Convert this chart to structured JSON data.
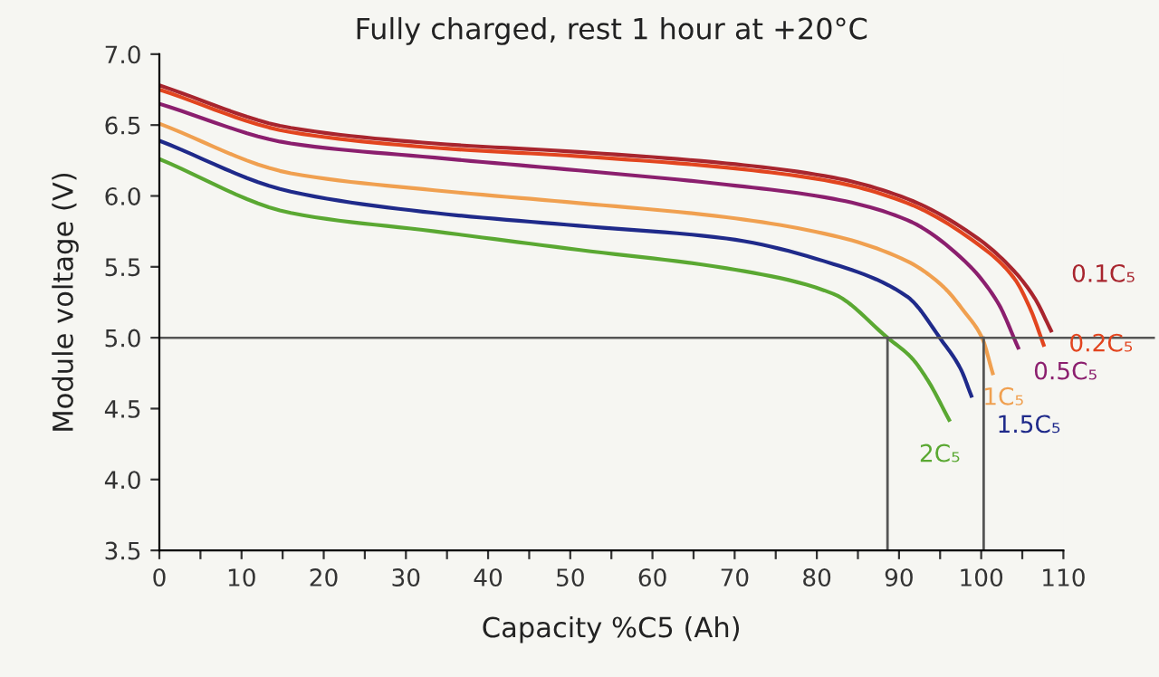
{
  "chart_data": {
    "type": "line",
    "title": "Fully charged, rest 1 hour at +20°C",
    "xlabel": "Capacity %C5 (Ah)",
    "ylabel": "Module voltage (V)",
    "xlim": [
      0,
      110
    ],
    "ylim": [
      3.5,
      7.0
    ],
    "xticks": [
      0,
      {
        "value": 5,
        "label": null
      },
      10,
      {
        "value": 15,
        "label": null
      },
      20,
      {
        "value": 25,
        "label": null
      },
      30,
      {
        "value": 35,
        "label": null
      },
      40,
      {
        "value": 45,
        "label": null
      },
      50,
      {
        "value": 55,
        "label": null
      },
      60,
      {
        "value": 65,
        "label": null
      },
      70,
      {
        "value": 75,
        "label": null
      },
      80,
      {
        "value": 85,
        "label": null
      },
      90,
      {
        "value": 95,
        "label": null
      },
      100,
      {
        "value": 105,
        "label": null
      },
      110
    ],
    "yticks": [
      3.5,
      {
        "value": 4,
        "label": "4.0"
      },
      4.5,
      {
        "value": 5,
        "label": "5.0"
      },
      5.5,
      {
        "value": 6,
        "label": "6.0"
      },
      6.5,
      {
        "value": 7,
        "label": "7.0"
      }
    ],
    "grid": false,
    "legend": false,
    "marker": "none",
    "line_style": "solid",
    "ref_lines": [
      {
        "axis": "y",
        "value": 5.0,
        "color": "#555555"
      }
    ],
    "series": [
      {
        "name": "0.1C₅",
        "color": "#a8252e",
        "x": [
          0,
          16,
          33.5,
          51,
          69,
          82,
          91,
          99.6,
          104,
          106.5,
          108.5
        ],
        "values": [
          6.78,
          6.48,
          6.37,
          6.31,
          6.23,
          6.13,
          5.98,
          5.7,
          5.47,
          5.28,
          5.05
        ]
      },
      {
        "name": "0.2C₅",
        "color": "#e2451f",
        "x": [
          0,
          16,
          33.5,
          51,
          69,
          82,
          91,
          99.6,
          104,
          106,
          107.6
        ],
        "values": [
          6.75,
          6.45,
          6.34,
          6.28,
          6.2,
          6.1,
          5.95,
          5.66,
          5.42,
          5.2,
          4.95
        ]
      },
      {
        "name": "0.5C₅",
        "color": "#8b1f6e",
        "x": [
          0,
          16,
          33.5,
          51,
          69,
          82,
          91,
          98,
          102,
          104.5
        ],
        "values": [
          6.65,
          6.37,
          6.27,
          6.18,
          6.08,
          5.98,
          5.83,
          5.54,
          5.25,
          4.93
        ]
      },
      {
        "name": "1C₅",
        "color": "#f0a050",
        "x": [
          0,
          16,
          33.5,
          51,
          69,
          82,
          91,
          95.2,
          98,
          100.1,
          101.4
        ],
        "values": [
          6.51,
          6.16,
          6.04,
          5.95,
          5.85,
          5.72,
          5.54,
          5.37,
          5.18,
          5.0,
          4.75
        ]
      },
      {
        "name": "1.5C₅",
        "color": "#1f2a8a",
        "x": [
          0,
          16,
          33.5,
          51,
          69,
          82,
          91,
          95.2,
          97.5,
          98.8
        ],
        "values": [
          6.39,
          6.03,
          5.88,
          5.79,
          5.7,
          5.52,
          5.29,
          4.98,
          4.78,
          4.59
        ]
      },
      {
        "name": "2C₅",
        "color": "#5aa832",
        "x": [
          0,
          16,
          33.5,
          51,
          69,
          82,
          88.6,
          91.5,
          93.5,
          96.1
        ],
        "values": [
          6.26,
          5.88,
          5.75,
          5.62,
          5.49,
          5.31,
          5.0,
          4.86,
          4.7,
          4.42
        ]
      },
      {
        "color": "#555555",
        "x": [
          88.6,
          88.6
        ],
        "values": [
          3.5,
          5.0
        ]
      },
      {
        "color": "#555555",
        "x": [
          100.3,
          100.3
        ],
        "values": [
          3.5,
          5.0
        ]
      }
    ]
  }
}
